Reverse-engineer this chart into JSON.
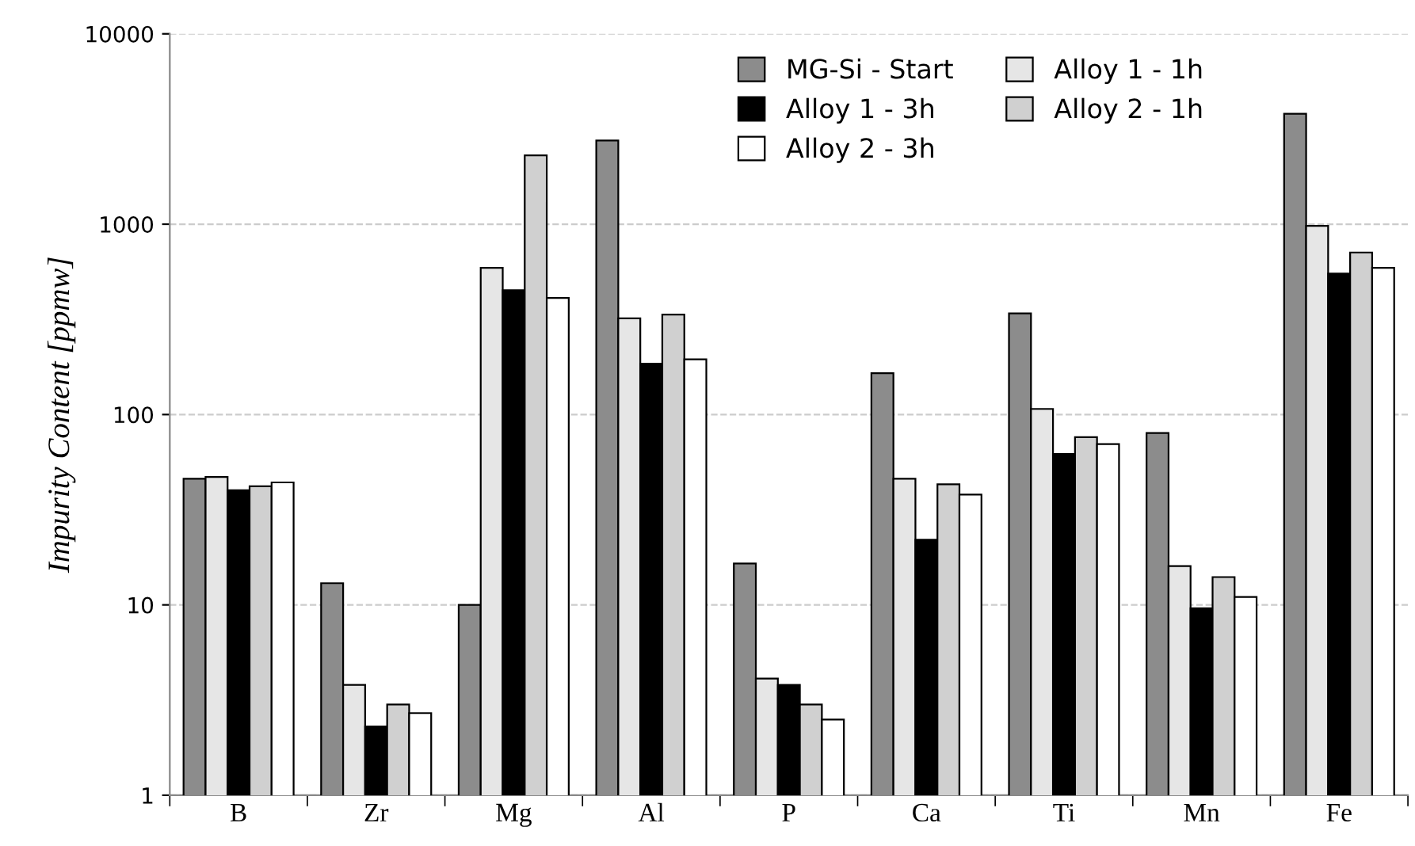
{
  "chart_data": {
    "type": "bar",
    "ylabel": "Impurity Content [ppmw]",
    "log": true,
    "ylim": [
      1,
      10000
    ],
    "yticks": [
      1,
      10,
      100,
      1000,
      10000
    ],
    "grid": "y",
    "legend": "top right",
    "categories": [
      "B",
      "Zr",
      "Mg",
      "Al",
      "P",
      "Ca",
      "Ti",
      "Mn",
      "Fe"
    ],
    "series": [
      {
        "name": "MG-Si - Start",
        "color": "#8c8c8c",
        "values": [
          46,
          13,
          10,
          2750,
          16.5,
          165,
          340,
          80,
          3800
        ]
      },
      {
        "name": "Alloy 1 - 1h",
        "color": "#e6e6e6",
        "values": [
          47,
          3.8,
          590,
          320,
          4.1,
          46,
          107,
          16,
          980
        ]
      },
      {
        "name": "Alloy 1 - 3h",
        "color": "#000000",
        "values": [
          40,
          2.3,
          450,
          185,
          3.8,
          22,
          62,
          9.6,
          550
        ]
      },
      {
        "name": "Alloy 2 - 1h",
        "color": "#d0d0d0",
        "values": [
          42,
          3.0,
          2300,
          335,
          3.0,
          43,
          76,
          14,
          710
        ]
      },
      {
        "name": "Alloy 2 - 3h",
        "color": "#ffffff",
        "values": [
          44,
          2.7,
          410,
          195,
          2.5,
          38,
          70,
          11,
          590
        ]
      }
    ]
  }
}
